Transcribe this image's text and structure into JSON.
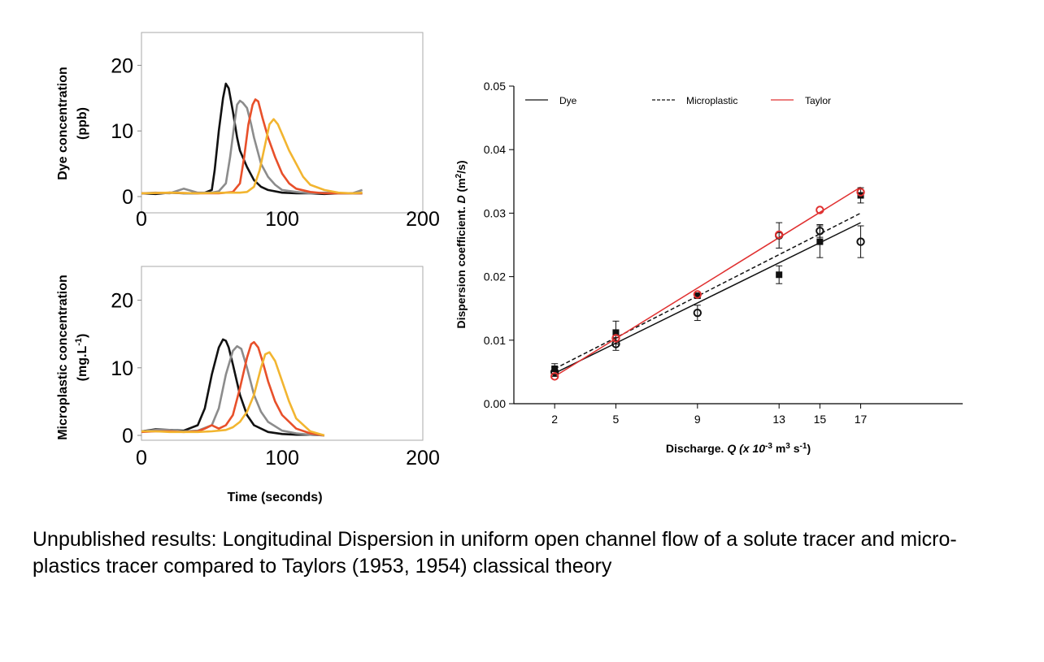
{
  "caption": "Unpublished results: Longitudinal Dispersion in uniform open channel flow of a solute tracer and micro-plastics tracer compared to Taylors (1953, 1954) classical theory",
  "colors": {
    "black": "#111111",
    "gray": "#8c8c8c",
    "red_orange": "#e8502a",
    "yellow": "#f2b530",
    "taylor_red": "#e03030"
  },
  "chart_data": [
    {
      "type": "line",
      "ylabel_line1": "Dye concentration",
      "ylabel_line2": "(ppb)",
      "xlim": [
        0,
        200
      ],
      "ylim": [
        0,
        25
      ],
      "xticks": [
        "0",
        "100",
        "200"
      ],
      "yticks": [
        "0",
        "10",
        "20"
      ],
      "series": [
        {
          "color": "#111111",
          "x": [
            0,
            10,
            20,
            30,
            40,
            45,
            50,
            52,
            55,
            58,
            60,
            62,
            65,
            68,
            70,
            75,
            80,
            85,
            90,
            100,
            110,
            120,
            130,
            140,
            150,
            157
          ],
          "y": [
            0.5,
            0.4,
            0.6,
            0.5,
            0.5,
            0.6,
            1,
            4,
            10,
            15,
            17.2,
            16.5,
            13,
            9,
            7,
            4.5,
            2.5,
            1.5,
            1,
            0.6,
            0.5,
            0.5,
            0.4,
            0.5,
            0.5,
            0.5
          ]
        },
        {
          "color": "#8c8c8c",
          "x": [
            0,
            10,
            20,
            30,
            40,
            50,
            55,
            60,
            63,
            66,
            68,
            70,
            72,
            75,
            78,
            80,
            85,
            90,
            95,
            100,
            110,
            120,
            130,
            140,
            150,
            157
          ],
          "y": [
            0.5,
            0.6,
            0.5,
            1.2,
            0.6,
            0.6,
            0.8,
            2,
            6,
            11,
            14,
            14.6,
            14.3,
            13.5,
            11,
            9,
            5,
            3,
            1.8,
            1,
            0.7,
            0.5,
            0.6,
            0.5,
            0.5,
            1
          ]
        },
        {
          "color": "#e8502a",
          "x": [
            0,
            20,
            40,
            55,
            60,
            65,
            70,
            73,
            76,
            79,
            81,
            83,
            86,
            90,
            95,
            100,
            105,
            110,
            120,
            130,
            140,
            150,
            157
          ],
          "y": [
            0.5,
            0.6,
            0.5,
            0.5,
            0.6,
            0.7,
            2,
            6,
            11,
            14,
            14.8,
            14.5,
            12,
            9,
            6,
            3.5,
            2,
            1.2,
            0.7,
            0.5,
            0.5,
            0.5,
            0.5
          ]
        },
        {
          "color": "#f2b530",
          "x": [
            0,
            20,
            40,
            60,
            70,
            75,
            80,
            84,
            88,
            91,
            94,
            97,
            100,
            105,
            110,
            115,
            120,
            130,
            140,
            150,
            157
          ],
          "y": [
            0.5,
            0.6,
            0.5,
            0.6,
            0.6,
            0.7,
            1.5,
            4,
            8,
            11,
            11.8,
            11,
            9.5,
            7,
            5,
            3,
            1.8,
            1,
            0.6,
            0.5,
            0.6
          ]
        }
      ]
    },
    {
      "type": "line",
      "ylabel_line1": "Microplastic concentration",
      "ylabel_line2": "(mg.L",
      "ylabel_sup": "-1",
      "ylabel_close": ")",
      "xlabel": "Time (seconds)",
      "xlim": [
        0,
        200
      ],
      "ylim": [
        0,
        25
      ],
      "xticks": [
        "0",
        "100",
        "200"
      ],
      "yticks": [
        "0",
        "10",
        "20"
      ],
      "series": [
        {
          "color": "#111111",
          "x": [
            0,
            10,
            20,
            30,
            40,
            45,
            50,
            55,
            58,
            60,
            62,
            65,
            70,
            75,
            80,
            90,
            100,
            110,
            120,
            130
          ],
          "y": [
            0.6,
            0.9,
            0.8,
            0.7,
            1.5,
            4,
            9,
            13,
            14.2,
            14,
            13,
            10.5,
            6,
            3,
            1.5,
            0.5,
            0.2,
            0.1,
            0.1,
            0
          ]
        },
        {
          "color": "#8c8c8c",
          "x": [
            0,
            10,
            20,
            30,
            40,
            50,
            55,
            60,
            65,
            68,
            71,
            75,
            80,
            85,
            90,
            100,
            110,
            120,
            130
          ],
          "y": [
            0.6,
            0.8,
            0.8,
            0.6,
            0.7,
            1.5,
            4,
            9,
            12.5,
            13.2,
            12.8,
            10,
            6,
            3.5,
            2,
            0.7,
            0.3,
            0.1,
            0
          ]
        },
        {
          "color": "#e8502a",
          "x": [
            0,
            10,
            20,
            30,
            40,
            45,
            50,
            55,
            60,
            65,
            70,
            75,
            78,
            80,
            83,
            86,
            90,
            95,
            100,
            110,
            120,
            130
          ],
          "y": [
            0.5,
            0.6,
            0.6,
            0.5,
            0.6,
            1,
            1.5,
            1,
            1.5,
            3,
            7,
            11.5,
            13.5,
            13.8,
            13,
            11,
            8,
            5,
            3,
            1,
            0.3,
            0
          ]
        },
        {
          "color": "#f2b530",
          "x": [
            0,
            10,
            20,
            30,
            40,
            50,
            60,
            65,
            70,
            75,
            80,
            85,
            88,
            91,
            95,
            100,
            105,
            110,
            120,
            130
          ],
          "y": [
            0.6,
            0.6,
            0.5,
            0.5,
            0.5,
            0.6,
            0.8,
            1.2,
            2,
            3.5,
            6,
            10,
            12,
            12.3,
            11,
            8,
            5,
            2.5,
            0.6,
            0
          ]
        }
      ]
    },
    {
      "type": "scatter",
      "ylabel_prefix": "Dispersion coefficient.",
      "ylabel_var": "D",
      "ylabel_unit": "(m",
      "ylabel_sup": "2",
      "ylabel_unit_end": "/s)",
      "xlabel_prefix": "Discharge.",
      "xlabel_var": "Q",
      "xlabel_unit1": "(x 10",
      "xlabel_sup1": "-3",
      "xlabel_unit2": " m",
      "xlabel_sup2": "3",
      "xlabel_unit3": " s",
      "xlabel_sup3": "-1",
      "xlabel_unit4": ")",
      "xlim": [
        0,
        22
      ],
      "ylim": [
        0,
        0.05
      ],
      "xticks": [
        2,
        5,
        9,
        13,
        15,
        17
      ],
      "xtick_labels": [
        "2",
        "5",
        "9",
        "13",
        "15",
        "17"
      ],
      "yticks": [
        0,
        0.01,
        0.02,
        0.03,
        0.04,
        0.05
      ],
      "ytick_labels": [
        "0.00",
        "0.01",
        "0.02",
        "0.03",
        "0.04",
        "0.05"
      ],
      "legend": {
        "placement": "top",
        "entries": [
          {
            "label": "Dye",
            "color": "#111111",
            "dash": "solid"
          },
          {
            "label": "Microplastic",
            "color": "#111111",
            "dash": "dashed"
          },
          {
            "label": "Taylor",
            "color": "#e03030",
            "dash": "solid"
          }
        ]
      },
      "series": [
        {
          "marker": "filled-square",
          "color": "#111111",
          "x": [
            2,
            5,
            9,
            13,
            15,
            17
          ],
          "y": [
            0.0055,
            0.0112,
            0.017,
            0.0203,
            0.0255,
            0.0328
          ],
          "err": [
            0.0008,
            0.0018,
            0.0,
            0.0014,
            0.0025,
            0.0012
          ]
        },
        {
          "marker": "open-circle",
          "color": "#111111",
          "x": [
            2,
            5,
            9,
            13,
            15,
            17
          ],
          "y": [
            0.005,
            0.0094,
            0.0143,
            0.0265,
            0.0272,
            0.0255
          ],
          "err": [
            0.0007,
            0.001,
            0.0012,
            0.002,
            0.001,
            0.0025
          ]
        },
        {
          "marker": "open-circle",
          "color": "#e03030",
          "x": [
            2,
            5,
            9,
            13,
            15,
            17
          ],
          "y": [
            0.0043,
            0.0103,
            0.0172,
            0.0266,
            0.0305,
            0.0333
          ],
          "err": [
            0,
            0,
            0,
            0,
            0,
            0
          ]
        }
      ],
      "fit_lines": [
        {
          "name_ref": "Dye",
          "color": "#111111",
          "dash": "solid",
          "x": [
            2,
            17
          ],
          "y": [
            0.0048,
            0.0285
          ]
        },
        {
          "name_ref": "Microplastic",
          "color": "#111111",
          "dash": "dashed",
          "x": [
            2,
            17
          ],
          "y": [
            0.0055,
            0.03
          ]
        },
        {
          "name_ref": "Taylor",
          "color": "#e03030",
          "dash": "solid",
          "x": [
            2,
            17
          ],
          "y": [
            0.0043,
            0.0341
          ]
        }
      ]
    }
  ]
}
